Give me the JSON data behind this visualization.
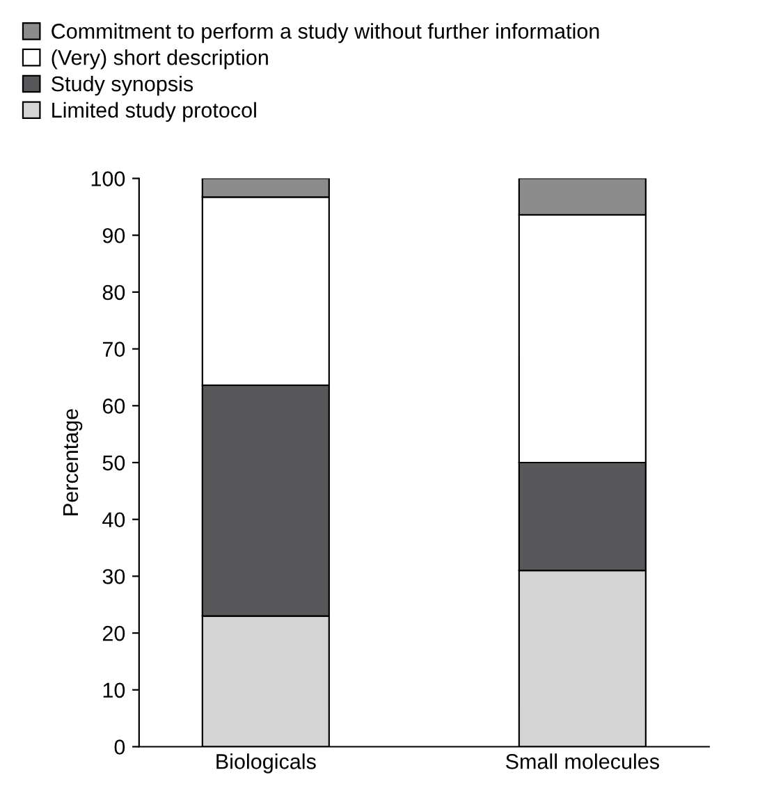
{
  "chart_data": {
    "type": "bar",
    "stacked": true,
    "ylabel": "Percentage",
    "categories": [
      "Biologicals",
      "Small molecules"
    ],
    "series": [
      {
        "name": "Limited study protocol",
        "color": "#d4d4d4",
        "values": [
          23,
          31
        ]
      },
      {
        "name": "Study synopsis",
        "color": "#58585a",
        "values": [
          40.6,
          19
        ]
      },
      {
        "name": "(Very) short description",
        "color": "#ffffff",
        "values": [
          33.1,
          43.6
        ]
      },
      {
        "name": "Commitment to perform a study without further information",
        "color": "#8c8c8c",
        "values": [
          3.3,
          6.4
        ]
      }
    ],
    "ylim": [
      0,
      100
    ],
    "yticks": [
      0,
      10,
      20,
      30,
      40,
      50,
      60,
      70,
      80,
      90,
      100
    ],
    "legend": "top left",
    "grid": false
  }
}
